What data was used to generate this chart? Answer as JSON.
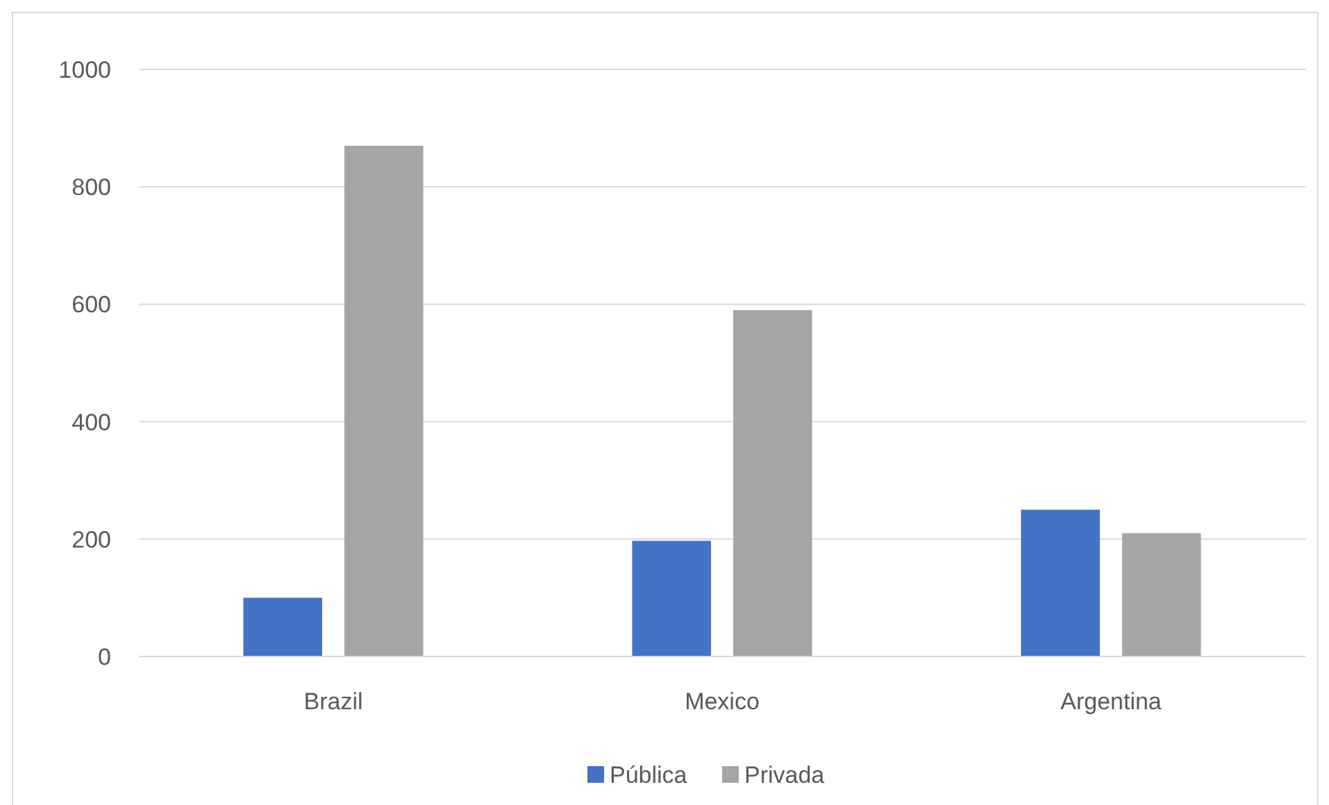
{
  "chart_data": {
    "type": "bar",
    "categories": [
      "Brazil",
      "Mexico",
      "Argentina"
    ],
    "series": [
      {
        "name": "Pública",
        "color": "#4472c4",
        "values": [
          100,
          197,
          250
        ]
      },
      {
        "name": "Privada",
        "color": "#a5a5a5",
        "values": [
          870,
          590,
          210
        ]
      }
    ],
    "ylim": [
      0,
      1000
    ],
    "yticks": [
      0,
      200,
      400,
      600,
      800,
      1000
    ],
    "grid": "y",
    "legend": "bottom"
  }
}
